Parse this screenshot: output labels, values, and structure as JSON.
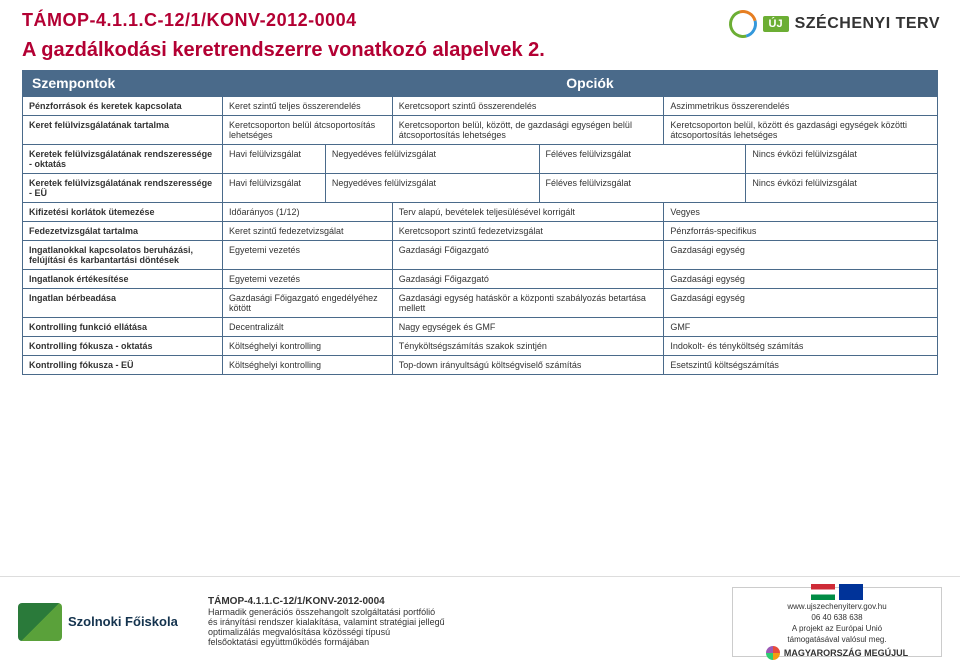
{
  "header": {
    "code": "TÁMOP-4.1.1.C-12/1/KONV-2012-0004",
    "title": "A gazdálkodási keretrendszerre vonatkozó alapelvek 2.",
    "uj_label": "ÚJ",
    "szechenyi_label": "SZÉCHENYI TERV"
  },
  "section": {
    "left": "Szempontok",
    "right": "Opciók"
  },
  "rows": [
    {
      "label": "Pénzforrások és keretek kapcsolata",
      "cells": [
        "Keret szintű teljes összerendelés",
        "Keretcsoport szintű összerendelés",
        "Aszimmetrikus összerendelés"
      ],
      "cols": 3
    },
    {
      "label": "Keret felülvizsgálatának tartalma",
      "cells": [
        "Keretcsoporton belül átcsoportosítás lehetséges",
        "Keretcsoporton belül, között, de gazdasági egységen belül átcsoportosítás lehetséges",
        "Keretcsoporton belül, között és gazdasági egységek közötti átcsoportosítás lehetséges"
      ],
      "cols": 3
    },
    {
      "label": "Keretek felülvizsgálatának rendszeressége - oktatás",
      "cells": [
        "Havi felülvizsgálat",
        "Negyedéves felülvizsgálat",
        "Féléves felülvizsgálat",
        "Nincs évközi felülvizsgálat"
      ],
      "cols": 4
    },
    {
      "label": "Keretek felülvizsgálatának rendszeressége - EÜ",
      "cells": [
        "Havi felülvizsgálat",
        "Negyedéves felülvizsgálat",
        "Féléves felülvizsgálat",
        "Nincs évközi felülvizsgálat"
      ],
      "cols": 4
    },
    {
      "label": "Kifizetési korlátok ütemezése",
      "cells": [
        "Időarányos (1/12)",
        "Terv alapú, bevételek teljesülésével korrigált",
        "Vegyes"
      ],
      "cols": 3
    },
    {
      "label": "Fedezetvizsgálat tartalma",
      "cells": [
        "Keret szintű fedezetvizsgálat",
        "Keretcsoport szintű fedezetvizsgálat",
        "Pénzforrás-specifikus"
      ],
      "cols": 3
    },
    {
      "label": "Ingatlanokkal kapcsolatos beruházási, felújítási és karbantartási döntések",
      "cells": [
        "Egyetemi vezetés",
        "Gazdasági Főigazgató",
        "Gazdasági egység"
      ],
      "cols": 3
    },
    {
      "label": "Ingatlanok értékesítése",
      "cells": [
        "Egyetemi vezetés",
        "Gazdasági Főigazgató",
        "Gazdasági egység"
      ],
      "cols": 3
    },
    {
      "label": "Ingatlan bérbeadása",
      "cells": [
        "Gazdasági Főigazgató engedélyéhez kötött",
        "Gazdasági egység hatáskör a központi szabályozás betartása mellett",
        "Gazdasági egység"
      ],
      "cols": 3
    },
    {
      "label": "Kontrolling funkció ellátása",
      "cells": [
        "Decentralizált",
        "Nagy egységek és GMF",
        "GMF"
      ],
      "cols": 3
    },
    {
      "label": "Kontrolling fókusza - oktatás",
      "cells": [
        "Költséghelyi kontrolling",
        "Tényköltségszámítás szakok szintjén",
        "Indokolt- és tényköltség számítás"
      ],
      "cols": 3
    },
    {
      "label": "Kontrolling fókusza - EÜ",
      "cells": [
        "Költséghelyi kontrolling",
        "Top-down irányultságú költségviselő számítás",
        "Esetszintű költségszámítás"
      ],
      "cols": 3
    }
  ],
  "footer": {
    "left_logo_text": "Szolnoki Főiskola",
    "center_title": "TÁMOP-4.1.1.C-12/1/KONV-2012-0004",
    "center_lines": [
      "Harmadik generációs összehangolt szolgáltatási portfólió",
      "és irányítási rendszer kialakítása, valamint stratégiai jellegű",
      "optimalizálás megvalósítása közösségi típusú",
      "felsőoktatási együttműködés formájában"
    ],
    "right_url": "www.ujszechenyiterv.gov.hu",
    "right_phone": "06 40 638 638",
    "right_caption1": "A projekt az Európai Unió",
    "right_caption2": "támogatásával valósul meg.",
    "magyar_label": "MAGYARORSZÁG MEGÚJUL"
  }
}
